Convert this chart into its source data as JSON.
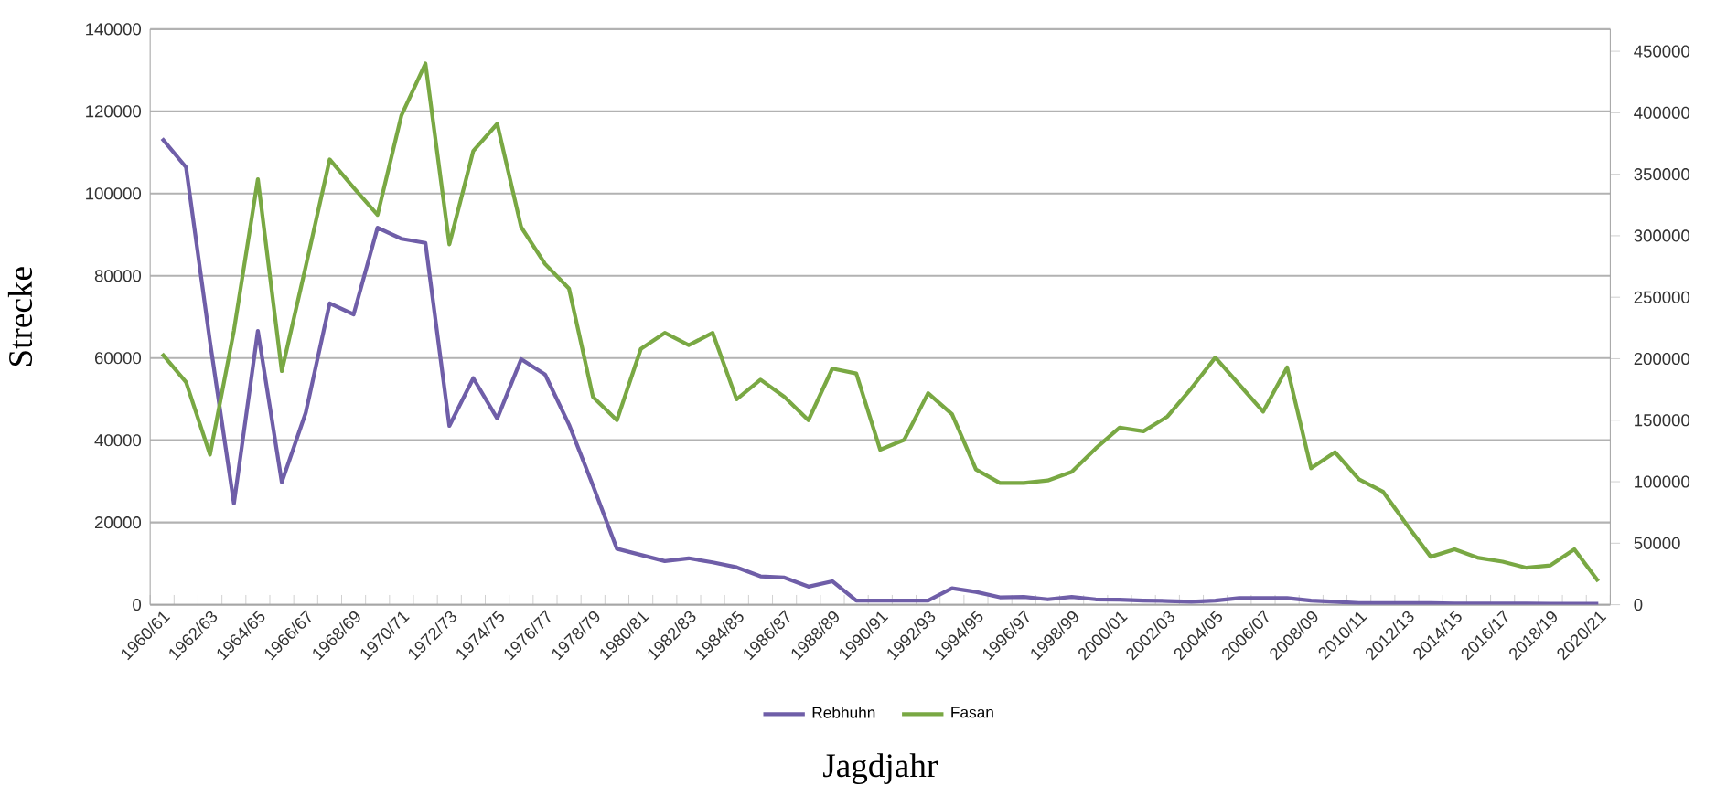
{
  "chart_data": {
    "type": "line",
    "xlabel": "Jagdjahr",
    "ylabel": "Strecke",
    "categories": [
      "1960/61",
      null,
      "1962/63",
      null,
      "1964/65",
      null,
      "1966/67",
      null,
      "1968/69",
      null,
      "1970/71",
      null,
      "1972/73",
      null,
      "1974/75",
      null,
      "1976/77",
      null,
      "1978/79",
      null,
      "1980/81",
      null,
      "1982/83",
      null,
      "1984/85",
      null,
      "1986/87",
      null,
      "1988/89",
      null,
      "1990/91",
      null,
      "1992/93",
      null,
      "1994/95",
      null,
      "1996/97",
      null,
      "1998/99",
      null,
      "2000/01",
      null,
      "2002/03",
      null,
      "2004/05",
      null,
      "2006/07",
      null,
      "2008/09",
      null,
      "2010/11",
      null,
      "2012/13",
      null,
      "2014/15",
      null,
      "2016/17",
      null,
      "2018/19",
      null,
      "2020/21"
    ],
    "series": [
      {
        "name": "Rebhuhn",
        "color": "#6f5ea8",
        "values": [
          113400,
          106400,
          64000,
          24600,
          66600,
          29800,
          46700,
          73300,
          70600,
          91700,
          89000,
          88000,
          43500,
          55100,
          45300,
          59700,
          56000,
          43800,
          29000,
          13600,
          12100,
          10600,
          11300,
          10300,
          9100,
          6900,
          6600,
          4400,
          5700,
          1000,
          1000,
          1000,
          1000,
          4000,
          3100,
          1800,
          1900,
          1300,
          1900,
          1300,
          1200,
          1000,
          900,
          700,
          1000,
          1600,
          1600,
          1600,
          1000,
          700,
          400,
          400,
          400,
          400,
          300,
          300,
          300,
          300,
          200,
          200,
          200
        ]
      },
      {
        "name": "Fasan",
        "color": "#79a843",
        "axis": "y2",
        "values": [
          204000,
          181000,
          122000,
          223000,
          346000,
          190000,
          275000,
          362000,
          339000,
          317000,
          398000,
          440000,
          293000,
          369000,
          391000,
          307000,
          277000,
          257000,
          169000,
          150000,
          208000,
          221000,
          211000,
          221000,
          167000,
          183000,
          169000,
          150000,
          192000,
          188000,
          126000,
          134000,
          172000,
          155000,
          110000,
          99000,
          99000,
          101000,
          108000,
          127000,
          144000,
          141000,
          153000,
          176000,
          201000,
          179000,
          157000,
          193000,
          111000,
          124000,
          102000,
          92000,
          65000,
          39000,
          45000,
          38000,
          35000,
          30000,
          32000,
          45000,
          19000
        ]
      }
    ],
    "ylim": [
      0,
      140000
    ],
    "yticks": [
      0,
      20000,
      40000,
      60000,
      80000,
      100000,
      120000,
      140000
    ],
    "y2lim": [
      0,
      468000
    ],
    "y2ticks": [
      0,
      50000,
      100000,
      150000,
      200000,
      250000,
      300000,
      350000,
      400000,
      450000
    ],
    "grid": "y",
    "legend": "bottom"
  }
}
